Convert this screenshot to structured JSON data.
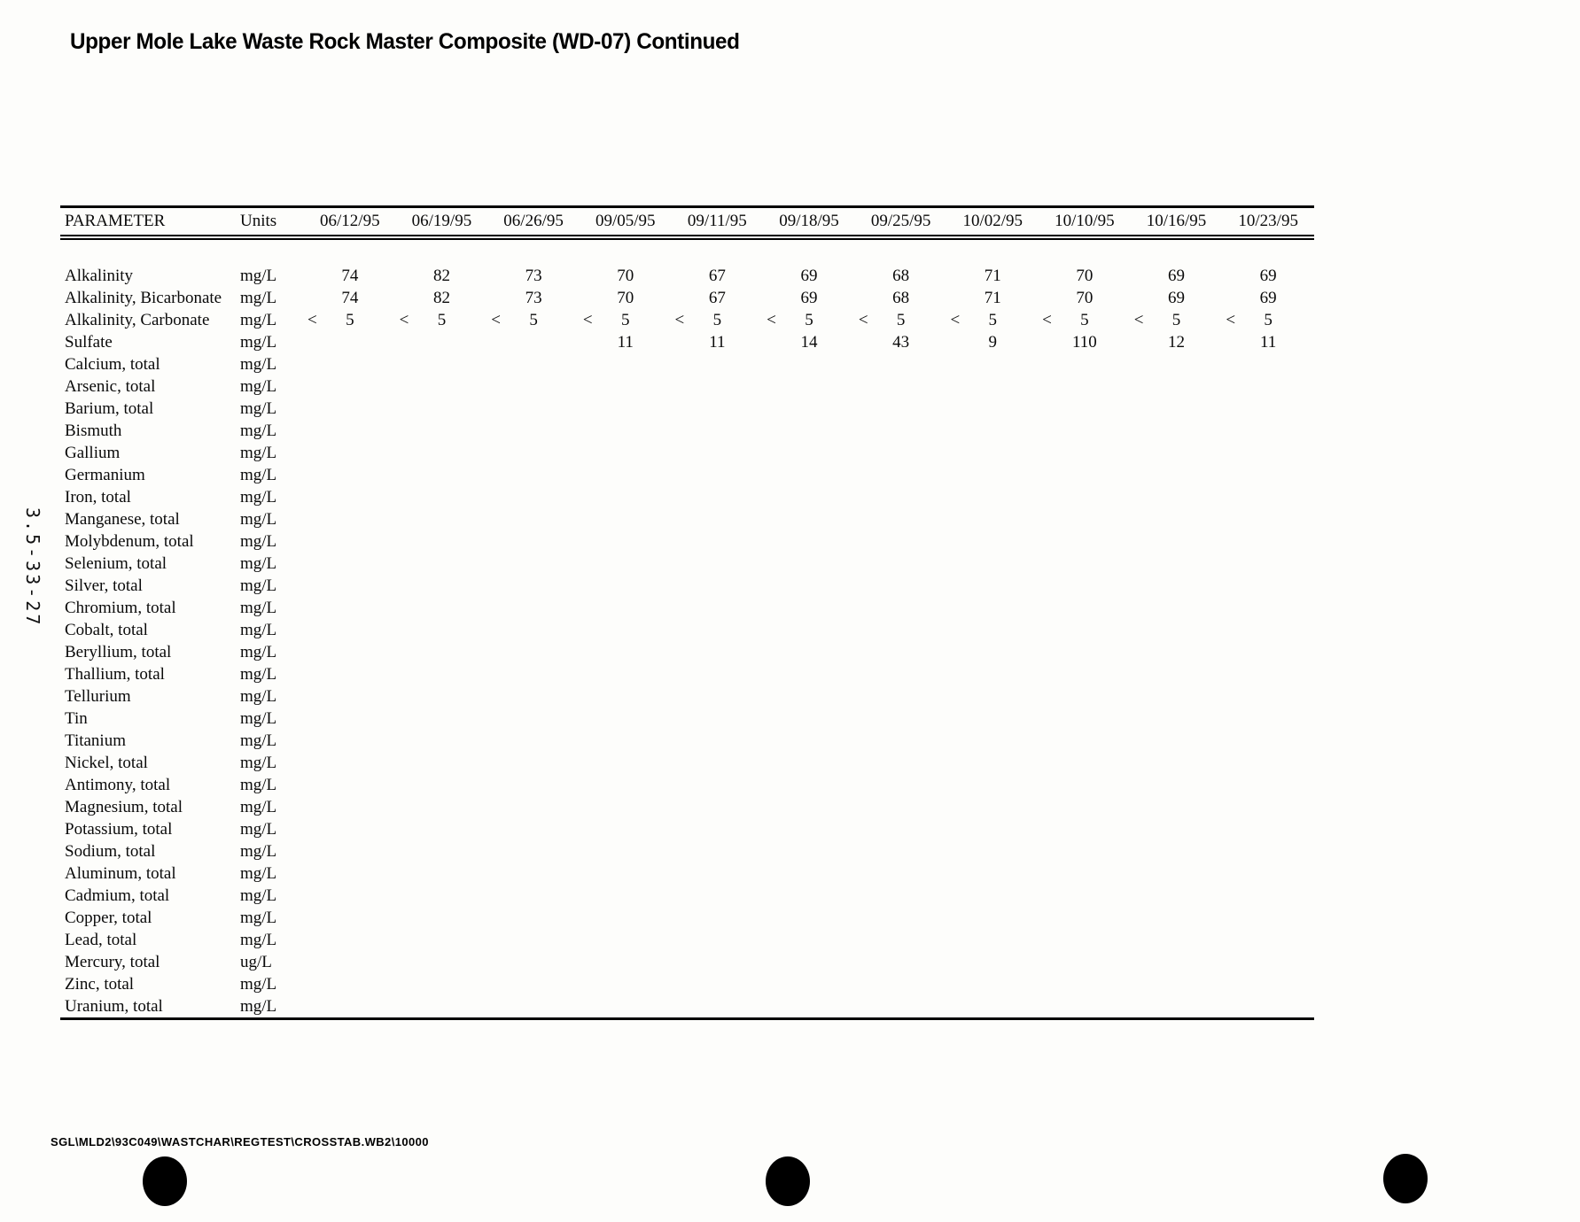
{
  "page": {
    "title": "Upper Mole Lake Waste Rock Master Composite (WD-07) Continued",
    "side_label": "3.5-33-27",
    "footer_path": "SGL\\MLD2\\93C049\\WASTCHAR\\REGTEST\\CROSSTAB.WB2\\10000"
  },
  "table": {
    "param_header": "PARAMETER",
    "units_header": "Units",
    "dates": [
      "06/12/95",
      "06/19/95",
      "06/26/95",
      "09/05/95",
      "09/11/95",
      "09/18/95",
      "09/25/95",
      "10/02/95",
      "10/10/95",
      "10/16/95",
      "10/23/95"
    ],
    "rows": [
      {
        "param": "Alkalinity",
        "units": "mg/L",
        "values": [
          "74",
          "82",
          "73",
          "70",
          "67",
          "69",
          "68",
          "71",
          "70",
          "69",
          "69"
        ]
      },
      {
        "param": "Alkalinity, Bicarbonate",
        "units": "mg/L",
        "values": [
          "74",
          "82",
          "73",
          "70",
          "67",
          "69",
          "68",
          "71",
          "70",
          "69",
          "69"
        ]
      },
      {
        "param": "Alkalinity, Carbonate",
        "units": "mg/L",
        "values": [
          "< 5",
          "< 5",
          "< 5",
          "< 5",
          "< 5",
          "< 5",
          "< 5",
          "< 5",
          "< 5",
          "< 5",
          "< 5"
        ]
      },
      {
        "param": "Sulfate",
        "units": "mg/L",
        "values": [
          "",
          "",
          "",
          "11",
          "11",
          "14",
          "43",
          "9",
          "110",
          "12",
          "11"
        ]
      },
      {
        "param": "Calcium, total",
        "units": "mg/L",
        "values": []
      },
      {
        "param": "Arsenic, total",
        "units": "mg/L",
        "values": []
      },
      {
        "param": "Barium, total",
        "units": "mg/L",
        "values": []
      },
      {
        "param": "Bismuth",
        "units": "mg/L",
        "values": []
      },
      {
        "param": "Gallium",
        "units": "mg/L",
        "values": []
      },
      {
        "param": "Germanium",
        "units": "mg/L",
        "values": []
      },
      {
        "param": "Iron, total",
        "units": "mg/L",
        "values": []
      },
      {
        "param": "Manganese, total",
        "units": "mg/L",
        "values": []
      },
      {
        "param": "Molybdenum, total",
        "units": "mg/L",
        "values": []
      },
      {
        "param": "Selenium, total",
        "units": "mg/L",
        "values": []
      },
      {
        "param": "Silver, total",
        "units": "mg/L",
        "values": []
      },
      {
        "param": "Chromium, total",
        "units": "mg/L",
        "values": []
      },
      {
        "param": "Cobalt, total",
        "units": "mg/L",
        "values": []
      },
      {
        "param": "Beryllium, total",
        "units": "mg/L",
        "values": []
      },
      {
        "param": "Thallium, total",
        "units": "mg/L",
        "values": []
      },
      {
        "param": "Tellurium",
        "units": "mg/L",
        "values": []
      },
      {
        "param": "Tin",
        "units": "mg/L",
        "values": []
      },
      {
        "param": "Titanium",
        "units": "mg/L",
        "values": []
      },
      {
        "param": "Nickel, total",
        "units": "mg/L",
        "values": []
      },
      {
        "param": "Antimony, total",
        "units": "mg/L",
        "values": []
      },
      {
        "param": "Magnesium, total",
        "units": "mg/L",
        "values": []
      },
      {
        "param": "Potassium, total",
        "units": "mg/L",
        "values": []
      },
      {
        "param": "Sodium, total",
        "units": "mg/L",
        "values": []
      },
      {
        "param": "Aluminum, total",
        "units": "mg/L",
        "values": []
      },
      {
        "param": "Cadmium, total",
        "units": "mg/L",
        "values": []
      },
      {
        "param": "Copper, total",
        "units": "mg/L",
        "values": []
      },
      {
        "param": "Lead, total",
        "units": "mg/L",
        "values": []
      },
      {
        "param": "Mercury, total",
        "units": "ug/L",
        "values": []
      },
      {
        "param": "Zinc, total",
        "units": "mg/L",
        "values": []
      },
      {
        "param": "Uranium, total",
        "units": "mg/L",
        "values": []
      }
    ]
  }
}
